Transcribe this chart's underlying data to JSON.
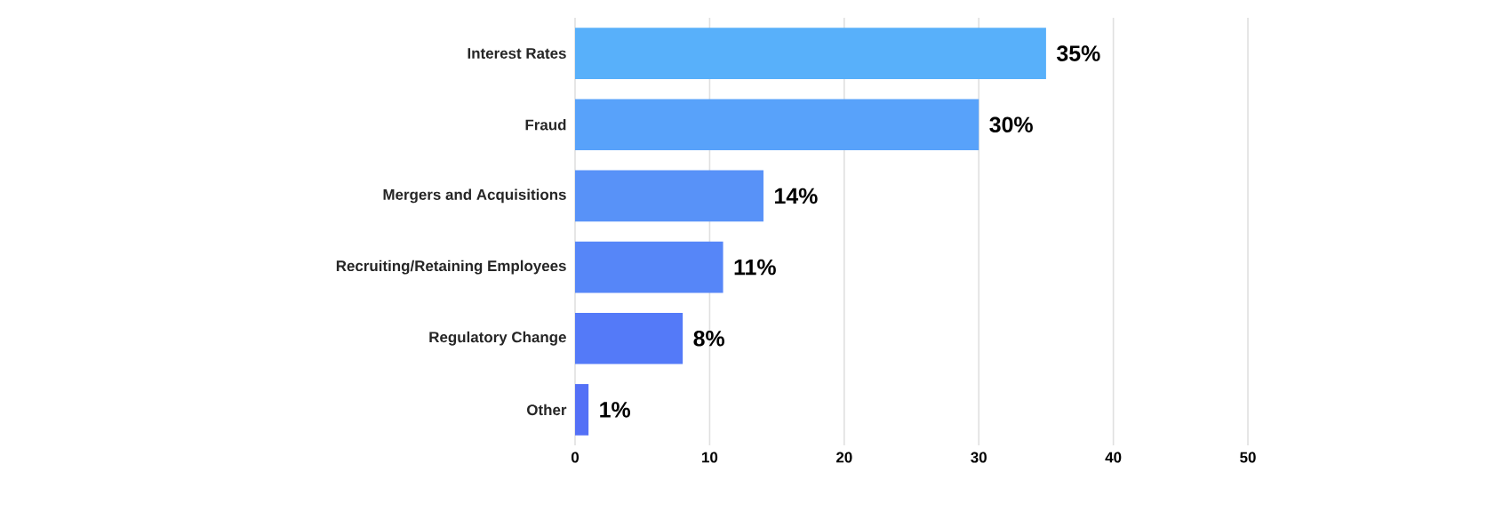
{
  "chart_data": {
    "type": "bar",
    "orientation": "horizontal",
    "categories": [
      "Interest Rates",
      "Fraud",
      "Mergers and Acquisitions",
      "Recruiting/Retaining Employees",
      "Regulatory Change",
      "Other"
    ],
    "values": [
      35,
      30,
      14,
      11,
      8,
      1
    ],
    "value_labels": [
      "35%",
      "30%",
      "14%",
      "11%",
      "8%",
      "1%"
    ],
    "colors": [
      "#58b0fa",
      "#58a2fa",
      "#5892f8",
      "#5686f8",
      "#547af8",
      "#5470f6"
    ],
    "xlim": [
      0,
      50
    ],
    "xticks": [
      0,
      10,
      20,
      30,
      40,
      50
    ],
    "grid": "x"
  }
}
